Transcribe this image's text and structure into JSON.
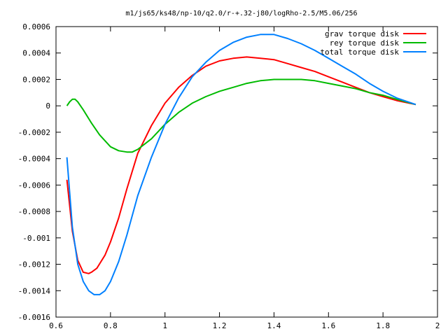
{
  "chart_data": {
    "type": "line",
    "title": "m1/js65/ks48/np-10/q2.0/r-+.32-j80/logRho-2.5/M5.06/256",
    "xlabel": "",
    "ylabel": "",
    "xlim": [
      0.6,
      2.0
    ],
    "ylim": [
      -0.0016,
      0.0006
    ],
    "x_ticks": [
      0.6,
      0.8,
      1.0,
      1.2,
      1.4,
      1.6,
      1.8,
      2.0
    ],
    "x_tick_labels": [
      "0.6",
      "0.8",
      "1",
      "1.2",
      "1.4",
      "1.6",
      "1.8",
      "2"
    ],
    "y_ticks": [
      -0.0016,
      -0.0014,
      -0.0012,
      -0.001,
      -0.0008,
      -0.0006,
      -0.0004,
      -0.0002,
      0,
      0.0002,
      0.0004,
      0.0006
    ],
    "y_tick_labels": [
      "-0.0016",
      "-0.0014",
      "-0.0012",
      "-0.001",
      "-0.0008",
      "-0.0006",
      "-0.0004",
      "-0.0002",
      "0",
      "0.0002",
      "0.0004",
      "0.0006"
    ],
    "grid": false,
    "legend_position": "top-right",
    "series": [
      {
        "name": "grav torque disk",
        "color": "#ff0000",
        "x": [
          0.64,
          0.66,
          0.68,
          0.7,
          0.72,
          0.73,
          0.75,
          0.78,
          0.8,
          0.83,
          0.86,
          0.9,
          0.95,
          1.0,
          1.05,
          1.1,
          1.15,
          1.2,
          1.25,
          1.3,
          1.35,
          1.4,
          1.45,
          1.5,
          1.55,
          1.6,
          1.65,
          1.7,
          1.75,
          1.8,
          1.85,
          1.92
        ],
        "y": [
          -0.00056,
          -0.00095,
          -0.00117,
          -0.00126,
          -0.00127,
          -0.00126,
          -0.00123,
          -0.00113,
          -0.00103,
          -0.00085,
          -0.00063,
          -0.00036,
          -0.00015,
          2e-05,
          0.00014,
          0.00023,
          0.0003,
          0.00034,
          0.00036,
          0.00037,
          0.00036,
          0.00035,
          0.00032,
          0.00029,
          0.00026,
          0.00022,
          0.00018,
          0.00014,
          0.0001,
          7e-05,
          4e-05,
          1e-05
        ]
      },
      {
        "name": "rey torque disk",
        "color": "#00bb00",
        "x": [
          0.64,
          0.65,
          0.66,
          0.67,
          0.68,
          0.7,
          0.73,
          0.76,
          0.8,
          0.83,
          0.86,
          0.88,
          0.9,
          0.95,
          1.0,
          1.05,
          1.1,
          1.15,
          1.2,
          1.25,
          1.3,
          1.35,
          1.4,
          1.45,
          1.5,
          1.55,
          1.6,
          1.65,
          1.7,
          1.75,
          1.8,
          1.85,
          1.92
        ],
        "y": [
          0.0,
          3e-05,
          5e-05,
          5e-05,
          3e-05,
          -3e-05,
          -0.00013,
          -0.00022,
          -0.00031,
          -0.00034,
          -0.00035,
          -0.00035,
          -0.00033,
          -0.00025,
          -0.00014,
          -5e-05,
          2e-05,
          7e-05,
          0.00011,
          0.00014,
          0.00017,
          0.00019,
          0.0002,
          0.0002,
          0.0002,
          0.00019,
          0.00017,
          0.00015,
          0.00013,
          0.0001,
          8e-05,
          5e-05,
          1e-05
        ]
      },
      {
        "name": "total torque disk",
        "color": "#0080ff",
        "x": [
          0.64,
          0.66,
          0.68,
          0.7,
          0.72,
          0.74,
          0.76,
          0.78,
          0.8,
          0.83,
          0.86,
          0.9,
          0.95,
          1.0,
          1.05,
          1.1,
          1.15,
          1.2,
          1.25,
          1.3,
          1.35,
          1.38,
          1.4,
          1.45,
          1.5,
          1.55,
          1.6,
          1.65,
          1.7,
          1.75,
          1.8,
          1.85,
          1.92
        ],
        "y": [
          -0.00039,
          -0.00092,
          -0.0012,
          -0.00133,
          -0.0014,
          -0.00143,
          -0.00143,
          -0.0014,
          -0.00133,
          -0.00118,
          -0.00098,
          -0.00068,
          -0.00039,
          -0.00014,
          6e-05,
          0.00022,
          0.00033,
          0.00042,
          0.00048,
          0.00052,
          0.00054,
          0.00054,
          0.00054,
          0.00051,
          0.00047,
          0.00042,
          0.00036,
          0.0003,
          0.00024,
          0.00017,
          0.00011,
          6e-05,
          1e-05
        ]
      }
    ]
  }
}
